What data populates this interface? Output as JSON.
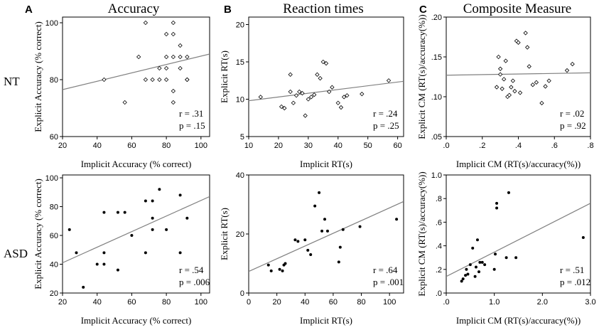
{
  "panels": [
    {
      "letter": "A",
      "title": "Accuracy"
    },
    {
      "letter": "B",
      "title": "Reaction times"
    },
    {
      "letter": "C",
      "title": "Composite Measure"
    }
  ],
  "rows": [
    "NT",
    "ASD"
  ],
  "chart_data": [
    {
      "id": "nt-accuracy",
      "type": "scatter",
      "marker": "open-diamond",
      "xlabel": "Implicit Accuracy (% correct)",
      "ylabel": "Explicit Accuracy (% correct)",
      "xlim": [
        20,
        105
      ],
      "ylim": [
        60,
        102
      ],
      "xticks": [
        20,
        40,
        60,
        80,
        100
      ],
      "xtick_labels": [
        "20",
        "40",
        "60",
        "80",
        "100"
      ],
      "yticks": [
        60,
        80,
        100
      ],
      "ytick_labels": [
        "60",
        "80",
        "100"
      ],
      "x": [
        44,
        56,
        64,
        68,
        68,
        72,
        76,
        76,
        80,
        80,
        80,
        80,
        84,
        84,
        84,
        88,
        88,
        88,
        92,
        92,
        92,
        92,
        84,
        84
      ],
      "y": [
        80,
        72,
        88,
        100,
        80,
        80,
        84,
        80,
        96,
        88,
        84,
        80,
        100,
        88,
        76,
        92,
        88,
        84,
        88,
        80,
        80,
        80,
        72,
        96
      ],
      "fit": {
        "x0": 20,
        "y0": 76.5,
        "x1": 105,
        "y1": 89
      },
      "r": "r = .31",
      "p": "p = .15"
    },
    {
      "id": "nt-rt",
      "type": "scatter",
      "marker": "open-diamond",
      "xlabel": "Implicit RT(s)",
      "ylabel": "Explicit RT(s)",
      "xlim": [
        10,
        62
      ],
      "ylim": [
        5,
        21
      ],
      "xticks": [
        10,
        20,
        30,
        40,
        50,
        60
      ],
      "xtick_labels": [
        "10",
        "20",
        "30",
        "40",
        "50",
        "60"
      ],
      "yticks": [
        5,
        10,
        15,
        20
      ],
      "ytick_labels": [
        "5",
        "10",
        "15",
        "20"
      ],
      "x": [
        14,
        21,
        22,
        24,
        24,
        25,
        26,
        27,
        28,
        29,
        30,
        31,
        32,
        33,
        34,
        35,
        36,
        37,
        38,
        40,
        41,
        42,
        43,
        48,
        57
      ],
      "y": [
        10.3,
        9.0,
        8.8,
        11.0,
        13.3,
        9.5,
        10.5,
        11.0,
        10.8,
        7.8,
        10.0,
        10.3,
        10.6,
        13.3,
        12.8,
        15.0,
        14.8,
        11.0,
        11.6,
        9.5,
        8.9,
        10.3,
        10.5,
        10.7,
        12.5
      ],
      "fit": {
        "x0": 10,
        "y0": 9.8,
        "x1": 62,
        "y1": 12.4
      },
      "r": "r = .24",
      "p": "p = .25"
    },
    {
      "id": "nt-cm",
      "type": "scatter",
      "marker": "open-diamond",
      "xlabel": "Implicit CM (RT(s)/accuracy(%))",
      "ylabel": "Explicit CM (RT(s)/accuracy(%))",
      "xlim": [
        0,
        0.8
      ],
      "ylim": [
        0.05,
        0.2
      ],
      "xticks": [
        0,
        0.2,
        0.4,
        0.6,
        0.8
      ],
      "xtick_labels": [
        ".0",
        ".2",
        ".4",
        ".6",
        ".8"
      ],
      "yticks": [
        0.05,
        0.1,
        0.15,
        0.2
      ],
      "ytick_labels": [
        ".05",
        ".10",
        ".15",
        ".20"
      ],
      "x": [
        0.28,
        0.29,
        0.3,
        0.3,
        0.31,
        0.32,
        0.33,
        0.34,
        0.35,
        0.36,
        0.37,
        0.38,
        0.39,
        0.4,
        0.41,
        0.44,
        0.45,
        0.46,
        0.48,
        0.5,
        0.53,
        0.55,
        0.57,
        0.67,
        0.7
      ],
      "y": [
        0.112,
        0.15,
        0.128,
        0.135,
        0.11,
        0.122,
        0.145,
        0.1,
        0.102,
        0.112,
        0.12,
        0.107,
        0.17,
        0.168,
        0.105,
        0.18,
        0.162,
        0.138,
        0.115,
        0.118,
        0.092,
        0.113,
        0.12,
        0.133,
        0.141
      ],
      "fit": {
        "x0": 0,
        "y0": 0.127,
        "x1": 0.8,
        "y1": 0.13
      },
      "r": "r = .02",
      "p": "p = .92"
    },
    {
      "id": "asd-accuracy",
      "type": "scatter",
      "marker": "filled-dot",
      "xlabel": "Implicit Accuracy (% correct)",
      "ylabel": "Explicit Accuracy (% correct)",
      "xlim": [
        20,
        105
      ],
      "ylim": [
        20,
        102
      ],
      "xticks": [
        20,
        40,
        60,
        80,
        100
      ],
      "xtick_labels": [
        "20",
        "40",
        "60",
        "80",
        "100"
      ],
      "yticks": [
        20,
        40,
        60,
        80,
        100
      ],
      "ytick_labels": [
        "20",
        "40",
        "60",
        "80",
        "100"
      ],
      "x": [
        24,
        28,
        32,
        40,
        44,
        44,
        44,
        52,
        52,
        56,
        60,
        68,
        68,
        72,
        72,
        72,
        76,
        80,
        88,
        88,
        92
      ],
      "y": [
        64,
        48,
        24,
        40,
        76,
        48,
        40,
        76,
        36,
        76,
        60,
        84,
        48,
        84,
        72,
        64,
        92,
        64,
        88,
        48,
        72
      ],
      "fit": {
        "x0": 20,
        "y0": 41,
        "x1": 105,
        "y1": 87
      },
      "r": "r = .54",
      "p": "p = .006"
    },
    {
      "id": "asd-rt",
      "type": "scatter",
      "marker": "filled-dot",
      "xlabel": "Implicit RT(s)",
      "ylabel": "Explicit RT(s)",
      "xlim": [
        0,
        110
      ],
      "ylim": [
        0,
        40
      ],
      "xticks": [
        0,
        20,
        40,
        60,
        80,
        100
      ],
      "xtick_labels": [
        "0",
        "20",
        "40",
        "60",
        "80",
        "100"
      ],
      "yticks": [
        0,
        20,
        40
      ],
      "ytick_labels": [
        "0",
        "20",
        "40"
      ],
      "x": [
        14,
        16,
        22,
        24,
        25,
        26,
        33,
        35,
        40,
        42,
        44,
        47,
        50,
        52,
        54,
        56,
        64,
        65,
        67,
        79,
        105
      ],
      "y": [
        9.5,
        7.5,
        8.0,
        7.5,
        9.5,
        10.0,
        18.0,
        17.5,
        18.0,
        14.5,
        13.0,
        29.5,
        34.0,
        21.0,
        25.0,
        21.0,
        10.5,
        15.5,
        21.5,
        22.5,
        25.0
      ],
      "fit": {
        "x0": 0,
        "y0": 7.3,
        "x1": 110,
        "y1": 31
      },
      "r": "r = .64",
      "p": "p = .001"
    },
    {
      "id": "asd-cm",
      "type": "scatter",
      "marker": "filled-dot",
      "xlabel": "Implicit CM (RT(s)/accuracy(%))",
      "ylabel": "Explicit CM (RT(s)/accuracy(%))",
      "xlim": [
        0,
        3
      ],
      "ylim": [
        0,
        1.0
      ],
      "xticks": [
        0,
        1,
        2,
        3
      ],
      "xtick_labels": [
        ".0",
        "1.0",
        "2.0",
        "3.0"
      ],
      "yticks": [
        0,
        0.2,
        0.4,
        0.6,
        0.8,
        1.0
      ],
      "ytick_labels": [
        ".0",
        ".2",
        ".4",
        ".6",
        ".8",
        "1.0"
      ],
      "x": [
        0.32,
        0.35,
        0.4,
        0.42,
        0.45,
        0.5,
        0.55,
        0.6,
        0.62,
        0.65,
        0.68,
        0.7,
        0.75,
        0.8,
        1.0,
        1.02,
        1.05,
        1.05,
        1.25,
        1.3,
        1.45,
        2.85
      ],
      "y": [
        0.1,
        0.12,
        0.15,
        0.2,
        0.16,
        0.24,
        0.38,
        0.14,
        0.22,
        0.45,
        0.18,
        0.26,
        0.26,
        0.24,
        0.2,
        0.33,
        0.76,
        0.72,
        0.3,
        0.85,
        0.3,
        0.47
      ],
      "fit": {
        "x0": 0,
        "y0": 0.14,
        "x1": 3,
        "y1": 0.76
      },
      "r": "r = .51",
      "p": "p = .012"
    }
  ]
}
